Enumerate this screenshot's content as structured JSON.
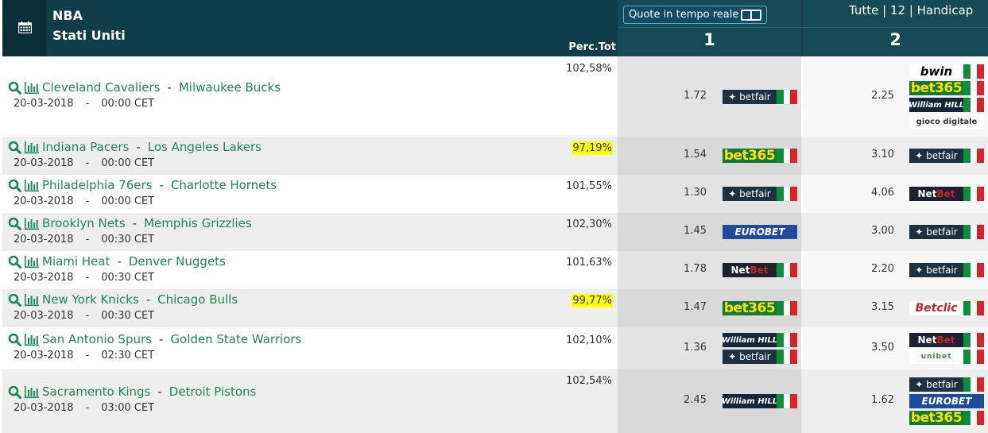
{
  "header": {
    "league": "NBA",
    "country": "Stati Uniti",
    "perc_label": "Perc.Tot",
    "realtime_label": "Quote in tempo reale",
    "filters": "Tutte | 12 | Handicap",
    "col1": "1",
    "col2": "2",
    "icons": [
      "calendar-icon",
      "toggle-icon"
    ]
  },
  "colors": {
    "header_bg": "#0f3d49",
    "team_link": "#1a8a55",
    "highlight": "#ffff00"
  },
  "matches": [
    {
      "home": "Cleveland Cavaliers",
      "away": "Milwaukee Bucks",
      "date": "20-03-2018",
      "time": "00:00 CET",
      "perc": "102,58%",
      "odd1": "1.72",
      "bk1": [
        "betfair"
      ],
      "odd2": "2.25",
      "bk2": [
        "bwin",
        "bet365",
        "williamhill",
        "giocodigitale"
      ]
    },
    {
      "home": "Indiana Pacers",
      "away": "Los Angeles Lakers",
      "date": "20-03-2018",
      "time": "00:00 CET",
      "perc": "97,19%",
      "odd1": "1.54",
      "bk1": [
        "bet365"
      ],
      "odd2": "3.10",
      "bk2": [
        "betfair"
      ]
    },
    {
      "home": "Philadelphia 76ers",
      "away": "Charlotte Hornets",
      "date": "20-03-2018",
      "time": "00:00 CET",
      "perc": "101,55%",
      "odd1": "1.30",
      "bk1": [
        "betfair"
      ],
      "odd2": "4.06",
      "bk2": [
        "netbet"
      ]
    },
    {
      "home": "Brooklyn Nets",
      "away": "Memphis Grizzlies",
      "date": "20-03-2018",
      "time": "00:30 CET",
      "perc": "102,30%",
      "odd1": "1.45",
      "bk1": [
        "eurobet"
      ],
      "odd2": "3.00",
      "bk2": [
        "betfair"
      ]
    },
    {
      "home": "Miami Heat",
      "away": "Denver Nuggets",
      "date": "20-03-2018",
      "time": "00:30 CET",
      "perc": "101,63%",
      "odd1": "1.78",
      "bk1": [
        "netbet"
      ],
      "odd2": "2.20",
      "bk2": [
        "betfair"
      ]
    },
    {
      "home": "New York Knicks",
      "away": "Chicago Bulls",
      "date": "20-03-2018",
      "time": "00:30 CET",
      "perc": "99,77%",
      "odd1": "1.47",
      "bk1": [
        "bet365"
      ],
      "odd2": "3.15",
      "bk2": [
        "betclic"
      ]
    },
    {
      "home": "San Antonio Spurs",
      "away": "Golden State Warriors",
      "date": "20-03-2018",
      "time": "02:30 CET",
      "perc": "102,10%",
      "odd1": "1.36",
      "bk1": [
        "williamhill",
        "betfair"
      ],
      "odd2": "3.50",
      "bk2": [
        "netbet",
        "unibet"
      ]
    },
    {
      "home": "Sacramento Kings",
      "away": "Detroit Pistons",
      "date": "20-03-2018",
      "time": "03:00 CET",
      "perc": "102,54%",
      "odd1": "2.45",
      "bk1": [
        "williamhill"
      ],
      "odd2": "1.62",
      "bk2": [
        "betfair",
        "eurobet",
        "bet365"
      ]
    }
  ],
  "bookmakers": {
    "betfair": "betfair",
    "bet365": "bet365",
    "bwin": "bwin",
    "williamhill": "William HILL",
    "giocodigitale": "gioco digitale",
    "netbet": "NetBet",
    "eurobet": "EUROBET",
    "betclic": "Betclic",
    "unibet": "unibet"
  }
}
